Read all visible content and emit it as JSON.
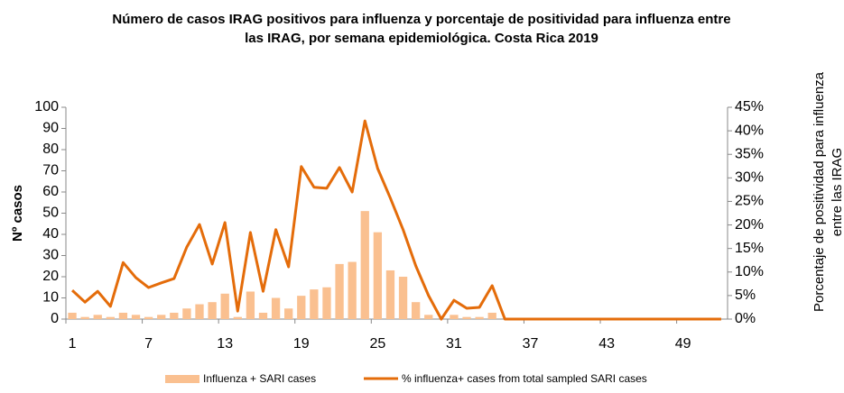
{
  "chart_data": {
    "type": "bar_line",
    "title": [
      "Número de casos IRAG positivos para influenza y porcentaje de positividad para influenza entre",
      "las IRAG, por semana epidemiológica. Costa Rica 2019"
    ],
    "y_label": "Nº casos",
    "y2_label": [
      "Porcentaje de positividad para influenza",
      "entre las IRAG"
    ],
    "categories": [
      1,
      null,
      null,
      null,
      null,
      null,
      7,
      null,
      null,
      null,
      null,
      null,
      13,
      null,
      null,
      null,
      null,
      null,
      19,
      null,
      null,
      null,
      null,
      null,
      25,
      null,
      null,
      null,
      null,
      null,
      31,
      null,
      null,
      null,
      null,
      null,
      37,
      null,
      null,
      null,
      null,
      null,
      43,
      null,
      null,
      null,
      null,
      null,
      49,
      null,
      null,
      null
    ],
    "series": [
      {
        "name": "Influenza + SARI cases",
        "type": "bar",
        "color": "#fac090",
        "axis": "y",
        "values": [
          3,
          1,
          2,
          1,
          3,
          2,
          1,
          2,
          3,
          5,
          7,
          8,
          12,
          1,
          13,
          3,
          10,
          5,
          11,
          14,
          15,
          26,
          27,
          51,
          41,
          23,
          20,
          8,
          2,
          0,
          2,
          1,
          1,
          3,
          0,
          0,
          0,
          0,
          0,
          0,
          0,
          0,
          0,
          0,
          0,
          0,
          0,
          0,
          0,
          0,
          0,
          0
        ]
      },
      {
        "name": "% influenza+ cases from total sampled SARI cases",
        "type": "line",
        "color": "#e46c0a",
        "axis": "y2",
        "values": [
          6.1,
          3.6,
          5.9,
          2.7,
          12,
          8.8,
          6.7,
          7.7,
          8.6,
          15.3,
          20.1,
          11.7,
          20.5,
          1.7,
          18.4,
          5.9,
          19,
          11.1,
          32.4,
          28,
          27.8,
          32.2,
          27,
          42.1,
          32,
          25.7,
          19,
          11.3,
          5,
          0,
          4,
          2.3,
          2.5,
          7.1,
          0,
          0,
          0,
          0,
          0,
          0,
          0,
          0,
          0,
          0,
          0,
          0,
          0,
          0,
          0,
          0,
          0,
          0
        ]
      }
    ],
    "ylim": [
      0,
      100
    ],
    "yticks": [
      0,
      10,
      20,
      30,
      40,
      50,
      60,
      70,
      80,
      90,
      100
    ],
    "y2lim": [
      0,
      45
    ],
    "y2ticks": [
      {
        "value": 0,
        "label": "0%"
      },
      {
        "value": 5,
        "label": "5%"
      },
      {
        "value": 10,
        "label": "10%"
      },
      {
        "value": 15,
        "label": "15%"
      },
      {
        "value": 20,
        "label": "20%"
      },
      {
        "value": 25,
        "label": "25%"
      },
      {
        "value": 30,
        "label": "30%"
      },
      {
        "value": 35,
        "label": "35%"
      },
      {
        "value": 40,
        "label": "40%"
      },
      {
        "value": 45,
        "label": "45%"
      }
    ],
    "legend": "bottom"
  }
}
